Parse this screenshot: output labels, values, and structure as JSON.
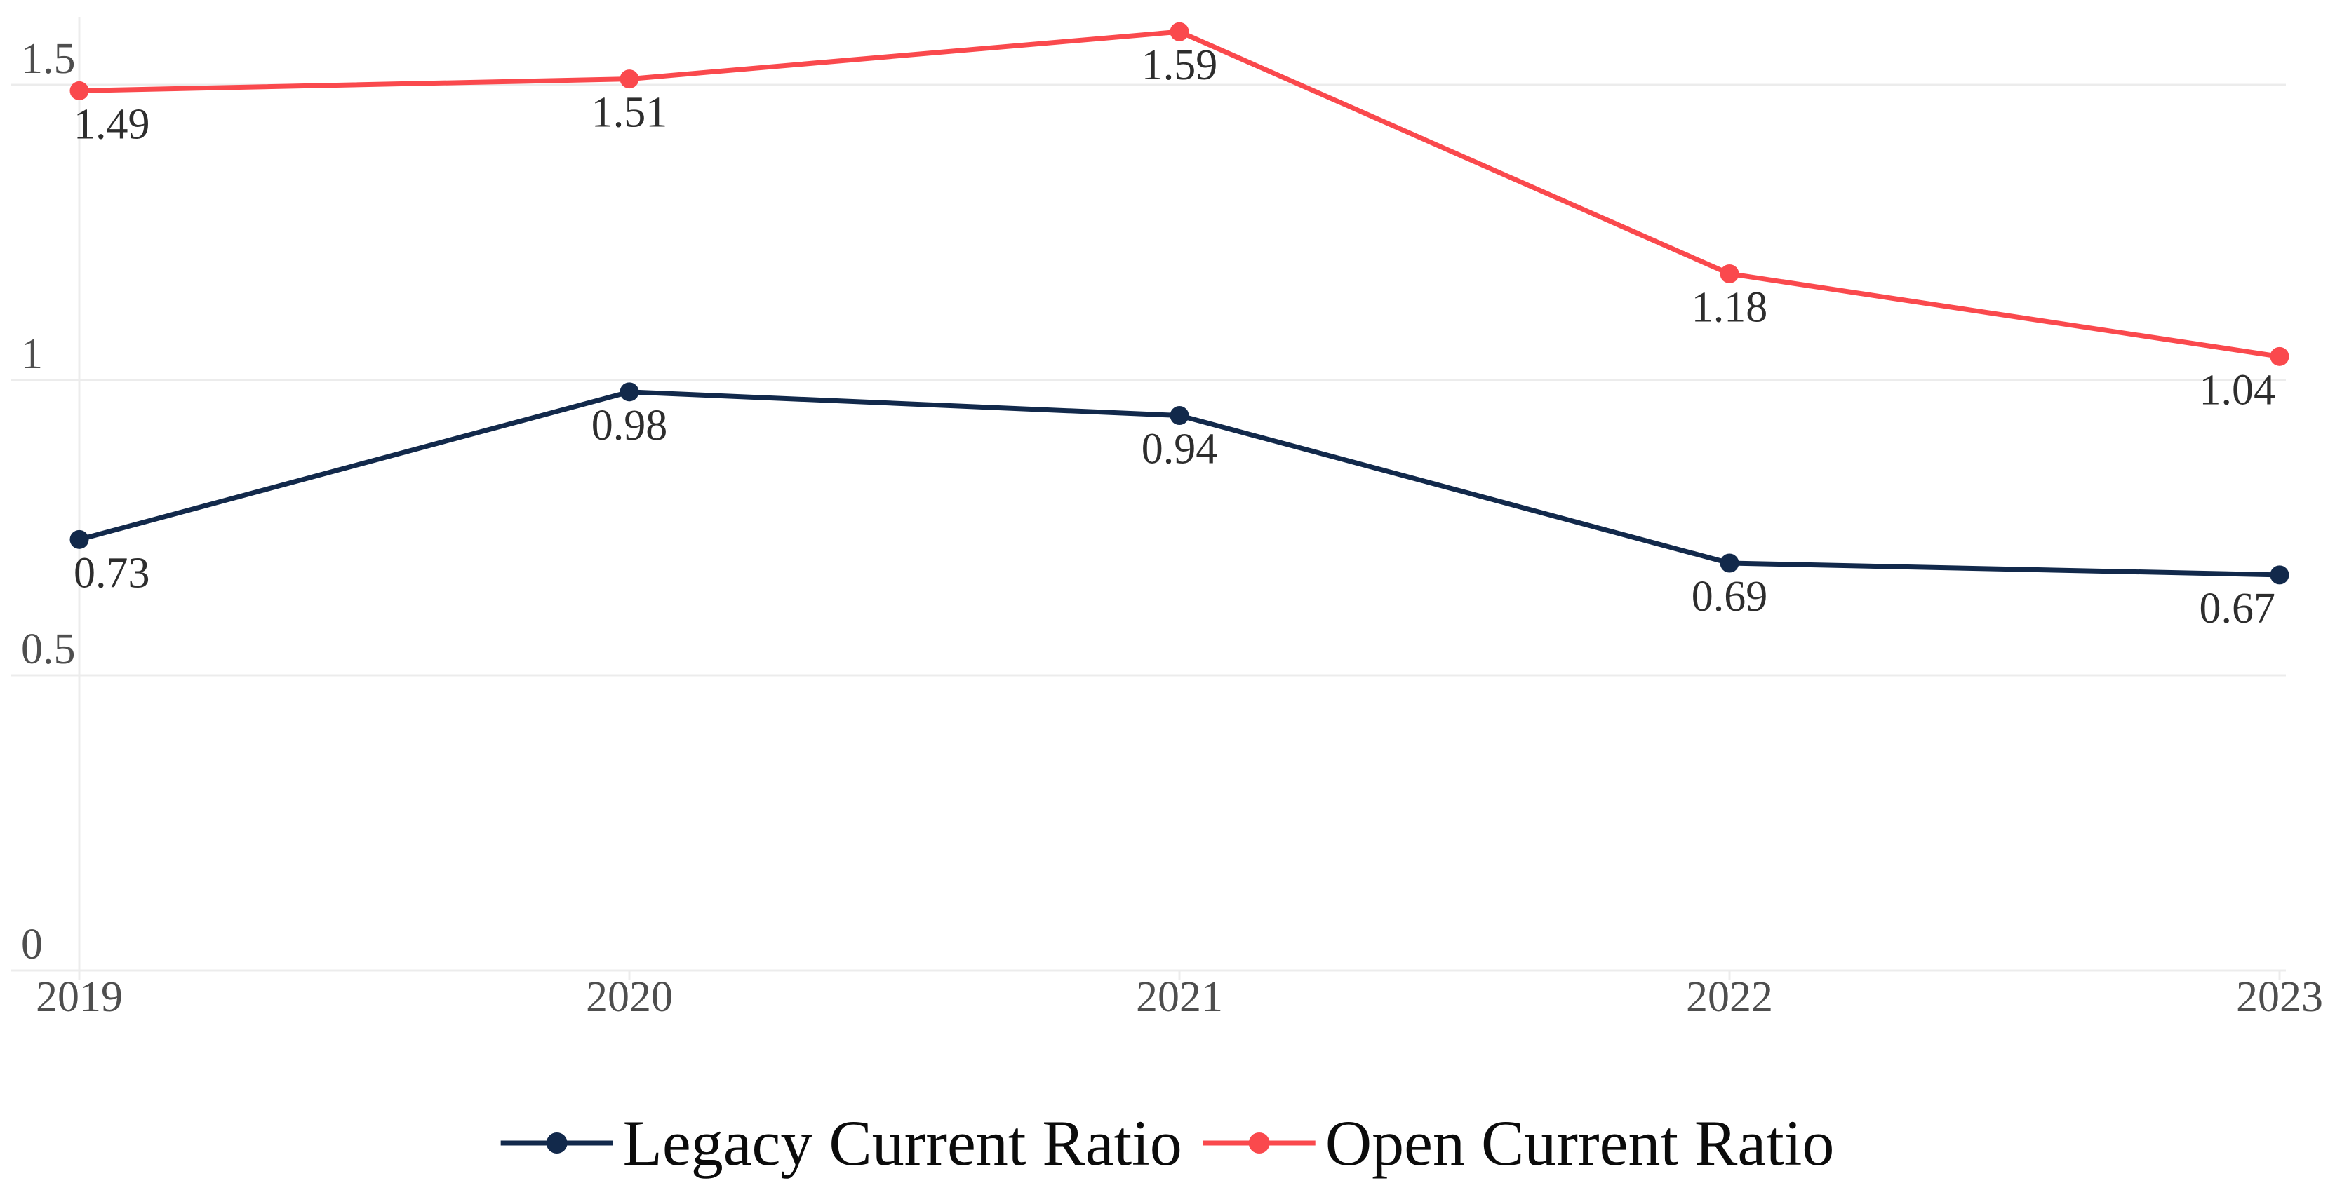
{
  "chart_data": {
    "type": "line",
    "title": "",
    "xlabel": "",
    "ylabel": "",
    "categories": [
      "2019",
      "2020",
      "2021",
      "2022",
      "2023"
    ],
    "series": [
      {
        "name": "Legacy Current Ratio",
        "color": "#12294b",
        "values": [
          0.73,
          0.98,
          0.94,
          0.69,
          0.67
        ]
      },
      {
        "name": "Open Current Ratio",
        "color": "#fa494d",
        "values": [
          1.49,
          1.51,
          1.59,
          1.18,
          1.04
        ]
      }
    ],
    "y_ticks": [
      0,
      0.5,
      1,
      1.5
    ],
    "ylim": [
      0,
      1.65
    ],
    "grid": "horizontal",
    "legend_position": "bottom",
    "value_labels": true,
    "styles": {
      "background": "#ffffff",
      "grid_color": "#ececec",
      "tick_label_color": "#4e4e4e",
      "value_label_color": "#2d2d2d",
      "legend_text_color": "#0b0b0b"
    }
  }
}
